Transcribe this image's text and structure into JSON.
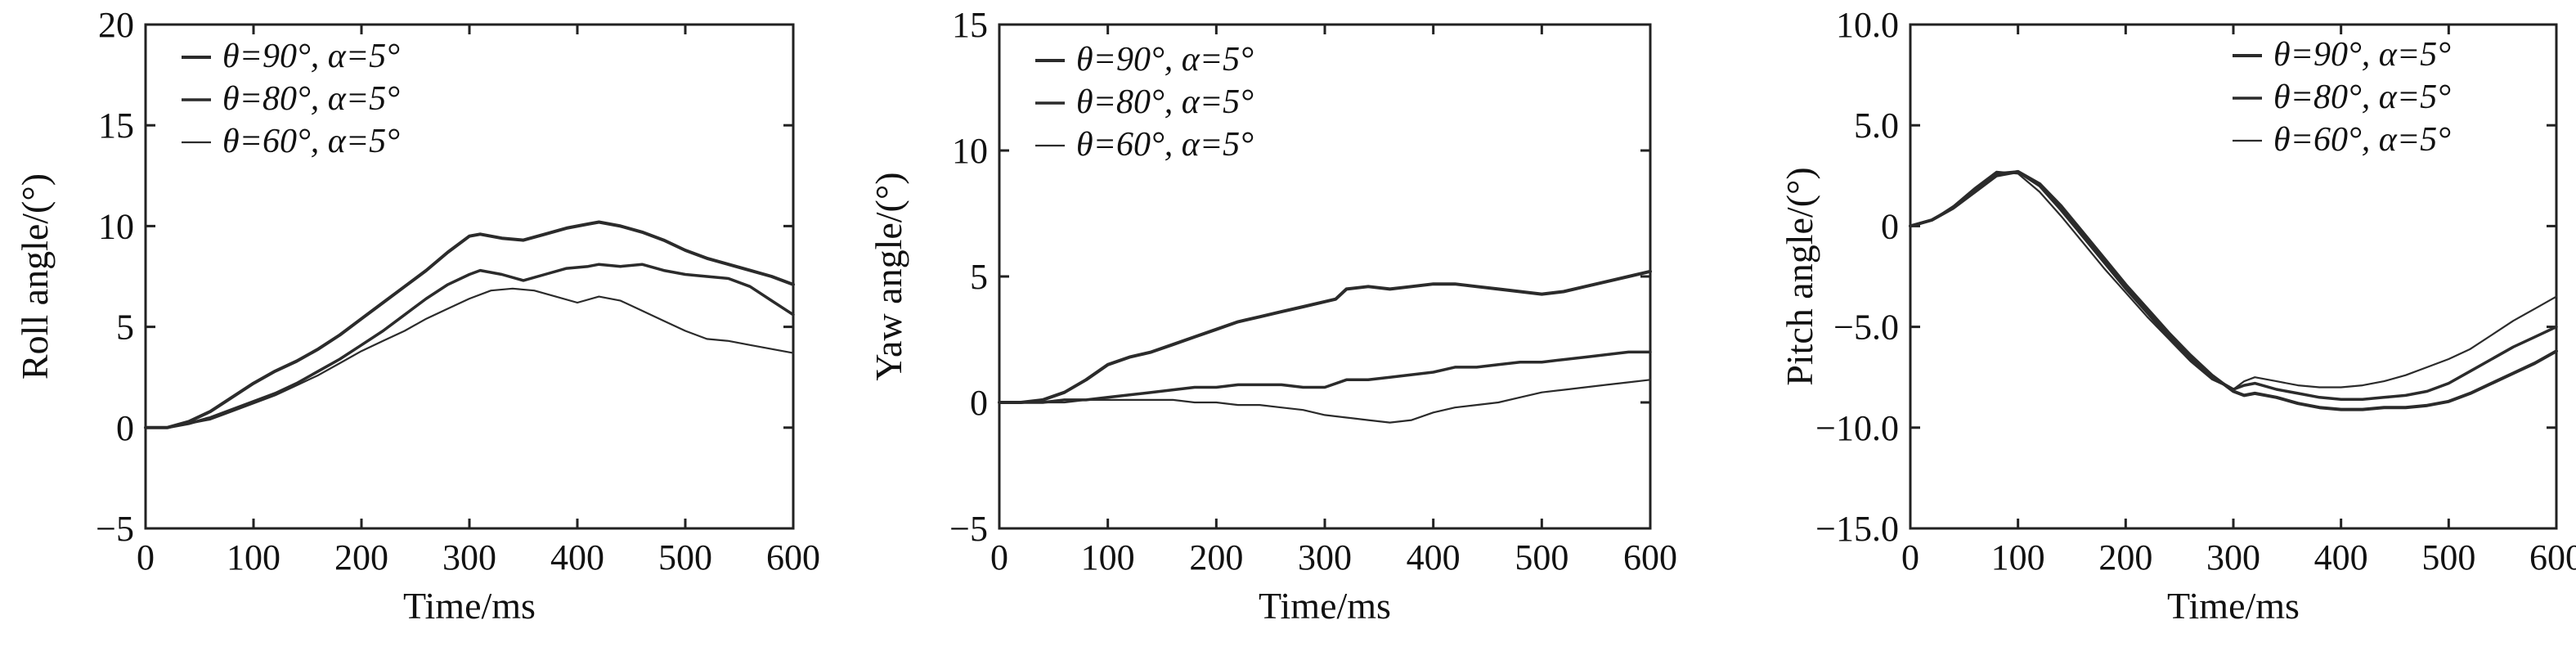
{
  "chart_data": [
    {
      "type": "line",
      "xlabel": "Time/ms",
      "ylabel": "Roll angle/(°)",
      "xlim": [
        0,
        600
      ],
      "ylim": [
        -5,
        20
      ],
      "x_ticks": [
        "0",
        "100",
        "200",
        "300",
        "400",
        "500",
        "600"
      ],
      "y_ticks": [
        "−5",
        "0",
        "5",
        "10",
        "15",
        "20"
      ],
      "legend_position": "top-left",
      "series": [
        {
          "name": "θ=90°, α=5°",
          "color": "#2b2b2b",
          "x": [
            0,
            20,
            40,
            60,
            80,
            100,
            120,
            140,
            160,
            180,
            200,
            220,
            240,
            260,
            280,
            300,
            310,
            330,
            350,
            370,
            390,
            410,
            420,
            440,
            460,
            480,
            500,
            520,
            540,
            560,
            580,
            600
          ],
          "y": [
            0,
            0,
            0.3,
            0.8,
            1.5,
            2.2,
            2.8,
            3.3,
            3.9,
            4.6,
            5.4,
            6.2,
            7.0,
            7.8,
            8.7,
            9.5,
            9.6,
            9.4,
            9.3,
            9.6,
            9.9,
            10.1,
            10.2,
            10.0,
            9.7,
            9.3,
            8.8,
            8.4,
            8.1,
            7.8,
            7.5,
            7.1
          ]
        },
        {
          "name": "θ=80°, α=5°",
          "color": "#2b2b2b",
          "x": [
            0,
            20,
            40,
            60,
            80,
            100,
            120,
            140,
            160,
            180,
            200,
            220,
            240,
            260,
            280,
            300,
            310,
            330,
            350,
            370,
            390,
            410,
            420,
            440,
            460,
            480,
            500,
            520,
            540,
            560,
            580,
            600
          ],
          "y": [
            0,
            0,
            0.2,
            0.5,
            0.9,
            1.3,
            1.7,
            2.2,
            2.8,
            3.4,
            4.1,
            4.8,
            5.6,
            6.4,
            7.1,
            7.6,
            7.8,
            7.6,
            7.3,
            7.6,
            7.9,
            8.0,
            8.1,
            8.0,
            8.1,
            7.8,
            7.6,
            7.5,
            7.4,
            7.0,
            6.3,
            5.6
          ]
        },
        {
          "name": "θ=60°, α=5°",
          "color": "#2b2b2b",
          "x": [
            0,
            20,
            40,
            60,
            80,
            100,
            120,
            140,
            160,
            180,
            200,
            220,
            240,
            260,
            280,
            300,
            320,
            340,
            360,
            380,
            400,
            420,
            440,
            460,
            480,
            500,
            520,
            540,
            560,
            580,
            600
          ],
          "y": [
            0,
            0,
            0.2,
            0.4,
            0.8,
            1.2,
            1.6,
            2.1,
            2.6,
            3.2,
            3.8,
            4.3,
            4.8,
            5.4,
            5.9,
            6.4,
            6.8,
            6.9,
            6.8,
            6.5,
            6.2,
            6.5,
            6.3,
            5.8,
            5.3,
            4.8,
            4.4,
            4.3,
            4.1,
            3.9,
            3.7
          ]
        }
      ]
    },
    {
      "type": "line",
      "xlabel": "Time/ms",
      "ylabel": "Yaw angle/(°)",
      "xlim": [
        0,
        600
      ],
      "ylim": [
        -5,
        15
      ],
      "x_ticks": [
        "0",
        "100",
        "200",
        "300",
        "400",
        "500",
        "600"
      ],
      "y_ticks": [
        "−5",
        "0",
        "5",
        "10",
        "15"
      ],
      "legend_position": "top-left",
      "series": [
        {
          "name": "θ=90°, α=5°",
          "color": "#2b2b2b",
          "x": [
            0,
            20,
            40,
            60,
            80,
            100,
            120,
            140,
            160,
            180,
            200,
            220,
            240,
            260,
            280,
            300,
            310,
            320,
            340,
            360,
            380,
            400,
            420,
            440,
            460,
            480,
            500,
            520,
            540,
            560,
            580,
            600
          ],
          "y": [
            0,
            0,
            0.1,
            0.4,
            0.9,
            1.5,
            1.8,
            2.0,
            2.3,
            2.6,
            2.9,
            3.2,
            3.4,
            3.6,
            3.8,
            4.0,
            4.1,
            4.5,
            4.6,
            4.5,
            4.6,
            4.7,
            4.7,
            4.6,
            4.5,
            4.4,
            4.3,
            4.4,
            4.6,
            4.8,
            5.0,
            5.2
          ]
        },
        {
          "name": "θ=80°, α=5°",
          "color": "#2b2b2b",
          "x": [
            0,
            20,
            40,
            60,
            80,
            100,
            120,
            140,
            160,
            180,
            200,
            220,
            240,
            260,
            280,
            300,
            320,
            340,
            360,
            380,
            400,
            420,
            440,
            460,
            480,
            500,
            520,
            540,
            560,
            580,
            600
          ],
          "y": [
            0,
            0,
            0,
            0.1,
            0.1,
            0.2,
            0.3,
            0.4,
            0.5,
            0.6,
            0.6,
            0.7,
            0.7,
            0.7,
            0.6,
            0.6,
            0.9,
            0.9,
            1.0,
            1.1,
            1.2,
            1.4,
            1.4,
            1.5,
            1.6,
            1.6,
            1.7,
            1.8,
            1.9,
            2.0,
            2.0
          ]
        },
        {
          "name": "θ=60°, α=5°",
          "color": "#2b2b2b",
          "x": [
            0,
            20,
            40,
            60,
            80,
            100,
            120,
            140,
            160,
            180,
            200,
            220,
            240,
            260,
            280,
            300,
            320,
            340,
            360,
            380,
            400,
            420,
            440,
            460,
            480,
            500,
            520,
            540,
            560,
            580,
            600
          ],
          "y": [
            0,
            0,
            0,
            0,
            0.1,
            0.1,
            0.1,
            0.1,
            0.1,
            0,
            0,
            -0.1,
            -0.1,
            -0.2,
            -0.3,
            -0.5,
            -0.6,
            -0.7,
            -0.8,
            -0.7,
            -0.4,
            -0.2,
            -0.1,
            0,
            0.2,
            0.4,
            0.5,
            0.6,
            0.7,
            0.8,
            0.9
          ]
        }
      ]
    },
    {
      "type": "line",
      "xlabel": "Time/ms",
      "ylabel": "Pitch angle/(°)",
      "xlim": [
        0,
        600
      ],
      "ylim": [
        -15,
        10
      ],
      "x_ticks": [
        "0",
        "100",
        "200",
        "300",
        "400",
        "500",
        "600"
      ],
      "y_ticks": [
        "−15.0",
        "−10.0",
        "−5.0",
        "0",
        "5.0",
        "10.0"
      ],
      "legend_position": "top-right",
      "series": [
        {
          "name": "θ=90°, α=5°",
          "color": "#2b2b2b",
          "x": [
            0,
            20,
            40,
            60,
            80,
            100,
            120,
            140,
            160,
            180,
            200,
            220,
            240,
            260,
            280,
            300,
            310,
            320,
            340,
            360,
            380,
            400,
            420,
            440,
            460,
            480,
            500,
            520,
            540,
            560,
            580,
            600
          ],
          "y": [
            0,
            0.3,
            0.9,
            1.7,
            2.5,
            2.7,
            2.1,
            1.0,
            -0.3,
            -1.6,
            -2.9,
            -4.1,
            -5.3,
            -6.4,
            -7.4,
            -8.2,
            -8.4,
            -8.3,
            -8.5,
            -8.8,
            -9.0,
            -9.1,
            -9.1,
            -9.0,
            -9.0,
            -8.9,
            -8.7,
            -8.3,
            -7.8,
            -7.3,
            -6.8,
            -6.2
          ]
        },
        {
          "name": "θ=80°, α=5°",
          "color": "#2b2b2b",
          "x": [
            0,
            20,
            40,
            60,
            80,
            100,
            120,
            140,
            160,
            180,
            200,
            220,
            240,
            260,
            280,
            300,
            310,
            320,
            340,
            360,
            380,
            400,
            420,
            440,
            460,
            480,
            500,
            520,
            540,
            560,
            580,
            600
          ],
          "y": [
            0,
            0.3,
            0.9,
            1.8,
            2.6,
            2.7,
            2.0,
            0.8,
            -0.5,
            -1.8,
            -3.1,
            -4.3,
            -5.5,
            -6.6,
            -7.5,
            -8.1,
            -7.9,
            -7.8,
            -8.1,
            -8.3,
            -8.5,
            -8.6,
            -8.6,
            -8.5,
            -8.4,
            -8.2,
            -7.8,
            -7.2,
            -6.6,
            -6.0,
            -5.5,
            -5.0
          ]
        },
        {
          "name": "θ=60°, α=5°",
          "color": "#2b2b2b",
          "x": [
            0,
            20,
            40,
            60,
            80,
            100,
            120,
            140,
            160,
            180,
            200,
            220,
            240,
            260,
            280,
            300,
            310,
            320,
            340,
            360,
            380,
            400,
            420,
            440,
            460,
            480,
            500,
            520,
            540,
            560,
            580,
            600
          ],
          "y": [
            0,
            0.3,
            1.0,
            1.9,
            2.7,
            2.6,
            1.7,
            0.5,
            -0.8,
            -2.1,
            -3.3,
            -4.5,
            -5.6,
            -6.7,
            -7.6,
            -8.1,
            -7.7,
            -7.5,
            -7.7,
            -7.9,
            -8.0,
            -8.0,
            -7.9,
            -7.7,
            -7.4,
            -7.0,
            -6.6,
            -6.1,
            -5.4,
            -4.7,
            -4.1,
            -3.5
          ]
        }
      ]
    }
  ]
}
